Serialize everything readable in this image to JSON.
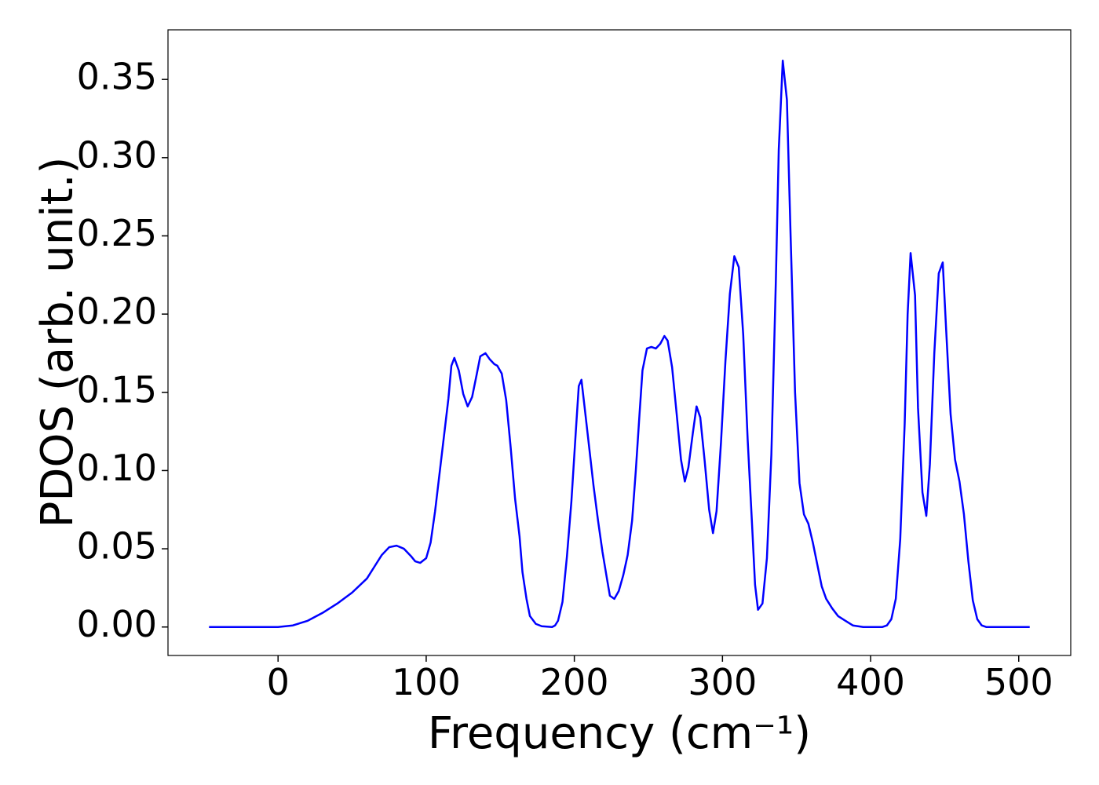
{
  "chart_data": {
    "type": "line",
    "xlabel": "Frequency (cm⁻¹)",
    "ylabel": "PDOS (arb. unit.)",
    "color": "#0000ff",
    "x": [
      -46.6,
      0,
      10,
      20,
      30,
      40,
      50,
      60,
      66,
      70,
      75,
      80,
      85,
      90,
      92.6,
      96,
      100,
      103,
      106,
      109,
      112,
      115,
      117,
      119,
      122,
      125,
      128,
      131,
      134,
      136.5,
      140,
      143,
      146,
      148,
      151,
      154,
      157,
      160,
      163,
      165,
      167.7,
      170,
      174,
      178,
      185,
      187,
      189,
      192,
      195,
      198,
      201,
      203,
      204.8,
      207,
      210,
      213,
      216,
      219,
      222,
      224,
      227,
      230,
      233,
      236,
      239,
      241.5,
      244,
      246,
      249,
      252,
      255,
      258,
      260.8,
      263,
      266,
      269,
      272,
      274.6,
      277,
      280,
      282.5,
      285,
      288,
      291,
      293.6,
      296,
      299,
      302,
      305,
      308,
      311,
      314,
      317,
      320,
      322,
      324,
      327,
      330,
      333,
      336,
      338,
      340.7,
      343.5,
      346,
      349,
      352,
      355,
      358,
      361,
      364,
      367,
      370,
      374,
      378,
      383,
      388,
      395,
      408,
      411,
      414,
      417,
      420,
      423,
      425,
      427,
      430,
      432,
      435,
      437.6,
      440,
      443,
      446,
      448.7,
      451,
      454,
      457,
      460,
      463,
      466,
      469,
      472,
      475,
      478,
      507.4
    ],
    "values": [
      0,
      0,
      0.001,
      0.004,
      0.009,
      0.015,
      0.022,
      0.031,
      0.04,
      0.046,
      0.051,
      0.052,
      0.05,
      0.045,
      0.042,
      0.041,
      0.044,
      0.054,
      0.074,
      0.098,
      0.122,
      0.146,
      0.167,
      0.172,
      0.164,
      0.149,
      0.141,
      0.147,
      0.161,
      0.173,
      0.175,
      0.171,
      0.168,
      0.167,
      0.162,
      0.145,
      0.115,
      0.082,
      0.058,
      0.035,
      0.018,
      0.007,
      0.002,
      0.0005,
      0,
      0.001,
      0.004,
      0.016,
      0.045,
      0.08,
      0.125,
      0.154,
      0.158,
      0.14,
      0.115,
      0.09,
      0.068,
      0.048,
      0.031,
      0.02,
      0.018,
      0.023,
      0.033,
      0.046,
      0.068,
      0.1,
      0.136,
      0.164,
      0.178,
      0.179,
      0.178,
      0.181,
      0.186,
      0.183,
      0.166,
      0.137,
      0.107,
      0.093,
      0.102,
      0.124,
      0.141,
      0.134,
      0.106,
      0.075,
      0.06,
      0.074,
      0.118,
      0.17,
      0.213,
      0.237,
      0.23,
      0.187,
      0.12,
      0.065,
      0.027,
      0.011,
      0.015,
      0.044,
      0.11,
      0.22,
      0.305,
      0.362,
      0.337,
      0.25,
      0.15,
      0.092,
      0.072,
      0.066,
      0.054,
      0.04,
      0.026,
      0.018,
      0.012,
      0.007,
      0.004,
      0.001,
      0,
      0,
      0.001,
      0.005,
      0.018,
      0.056,
      0.13,
      0.2,
      0.239,
      0.212,
      0.14,
      0.086,
      0.071,
      0.104,
      0.175,
      0.226,
      0.233,
      0.19,
      0.136,
      0.107,
      0.093,
      0.072,
      0.042,
      0.017,
      0.005,
      0.001,
      0,
      0
    ],
    "xlim": [
      -74.3,
      535.1
    ],
    "ylim": [
      -0.0182,
      0.3817
    ],
    "xticks": [
      0,
      100,
      200,
      300,
      400,
      500
    ],
    "yticks": [
      {
        "value": 0,
        "label": "0.00"
      },
      {
        "value": 0.05,
        "label": "0.05"
      },
      {
        "value": 0.1,
        "label": "0.10"
      },
      {
        "value": 0.15,
        "label": "0.15"
      },
      {
        "value": 0.2,
        "label": "0.20"
      },
      {
        "value": 0.25,
        "label": "0.25"
      },
      {
        "value": 0.3,
        "label": "0.30"
      },
      {
        "value": 0.35,
        "label": "0.35"
      }
    ],
    "grid": false
  }
}
